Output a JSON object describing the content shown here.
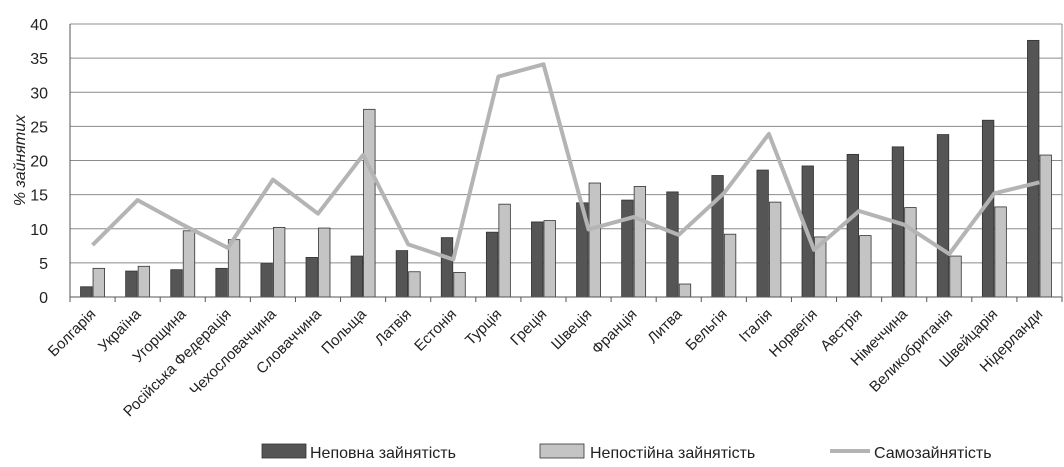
{
  "chart_data": {
    "type": "bar",
    "ylabel": "% зайнятих",
    "xlabel": "",
    "ylim": [
      0,
      40
    ],
    "yticks": [
      0,
      5,
      10,
      15,
      20,
      25,
      30,
      35,
      40
    ],
    "grid": true,
    "legend_position": "bottom",
    "categories": [
      "Болгарія",
      "Україна",
      "Угорщина",
      "Російська Федерація",
      "Чехословаччина",
      "Словаччина",
      "Польща",
      "Латвія",
      "Естонія",
      "Турція",
      "Греція",
      "Швеція",
      "Франція",
      "Литва",
      "Бельгія",
      "Італія",
      "Норвегія",
      "Австрія",
      "Німеччина",
      "Великобританія",
      "Швейцарія",
      "Нідерланди"
    ],
    "series": [
      {
        "name": "Неповна зайнятість",
        "type": "bar",
        "color": "#555555",
        "values": [
          1.5,
          3.8,
          4.0,
          4.2,
          4.9,
          5.8,
          6.0,
          6.8,
          8.7,
          9.5,
          11.0,
          13.8,
          14.2,
          15.4,
          17.8,
          18.6,
          19.2,
          20.9,
          22.0,
          23.8,
          25.9,
          37.6
        ]
      },
      {
        "name": "Непостійна зайнятість",
        "type": "bar",
        "color": "#c4c4c4",
        "values": [
          4.2,
          4.5,
          9.7,
          8.4,
          10.2,
          10.1,
          27.5,
          3.7,
          3.6,
          13.6,
          11.2,
          16.7,
          16.2,
          1.9,
          9.2,
          13.9,
          8.8,
          9.0,
          13.1,
          6.0,
          13.2,
          20.8
        ]
      },
      {
        "name": "Самозайнятість",
        "type": "line",
        "color": "#b4b4b4",
        "values": [
          7.6,
          14.2,
          10.6,
          7.2,
          17.2,
          12.2,
          20.8,
          7.7,
          5.5,
          32.3,
          34.1,
          9.9,
          11.7,
          9.1,
          15.2,
          23.9,
          6.9,
          12.6,
          10.6,
          6.3,
          15.2,
          16.8
        ]
      }
    ]
  }
}
